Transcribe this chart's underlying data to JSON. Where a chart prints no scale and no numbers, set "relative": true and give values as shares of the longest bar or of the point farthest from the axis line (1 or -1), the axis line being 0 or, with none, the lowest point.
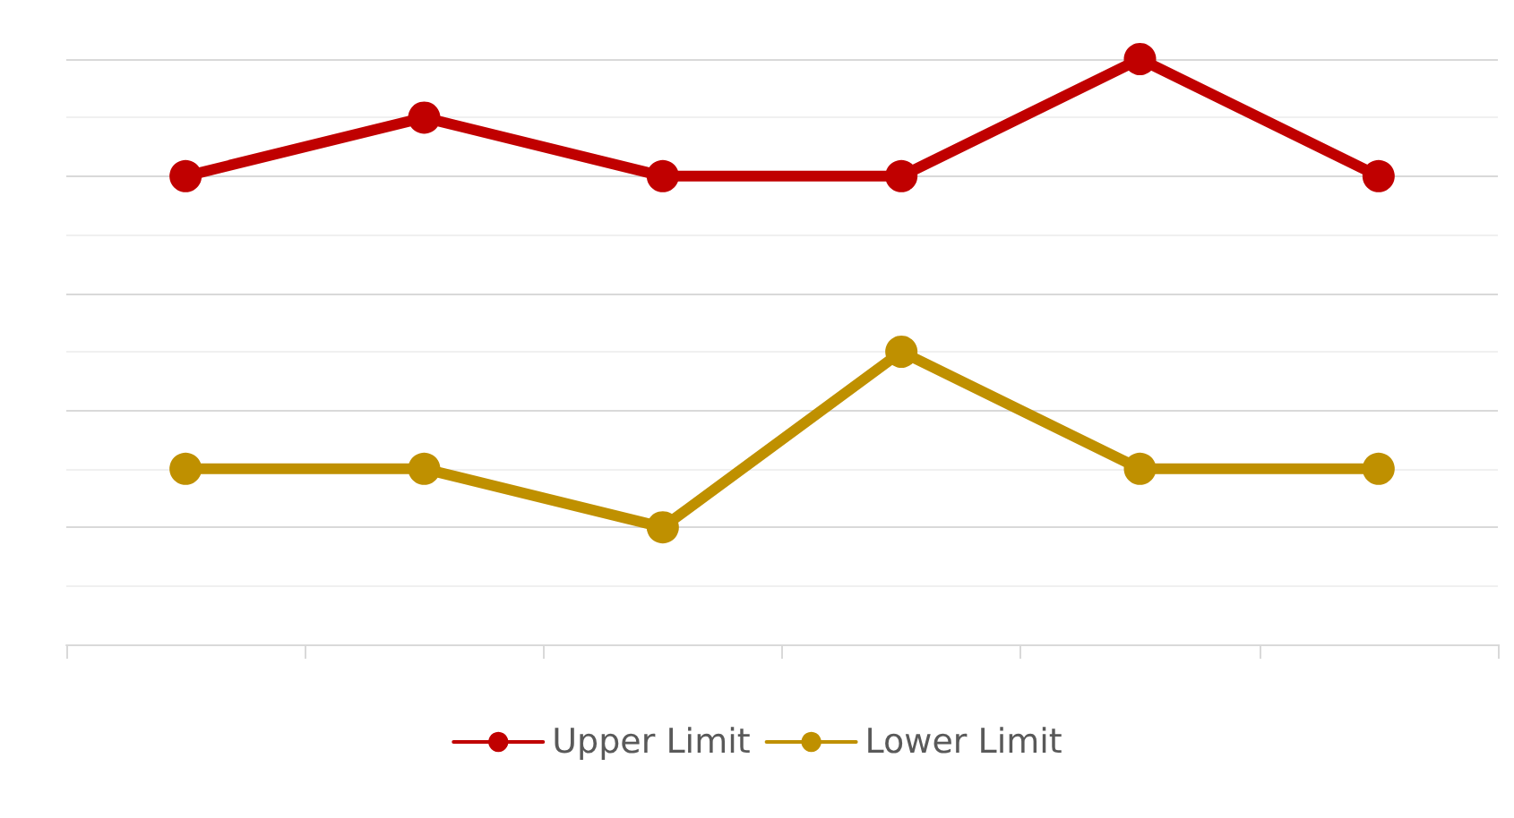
{
  "chart_data": {
    "type": "line",
    "relative": true,
    "categories": [
      null,
      null,
      null,
      null,
      null,
      null
    ],
    "series": [
      {
        "name": "Upper Limit",
        "color": "#c00000",
        "values": [
          0.8,
          0.9,
          0.8,
          0.8,
          1.0,
          0.8
        ]
      },
      {
        "name": "Lower Limit",
        "color": "#bf9000",
        "values": [
          0.3,
          0.3,
          0.2,
          0.5,
          0.3,
          0.3
        ]
      }
    ],
    "grid": "y",
    "legend": "bottom",
    "marker": "circle",
    "line_style": "solid"
  }
}
